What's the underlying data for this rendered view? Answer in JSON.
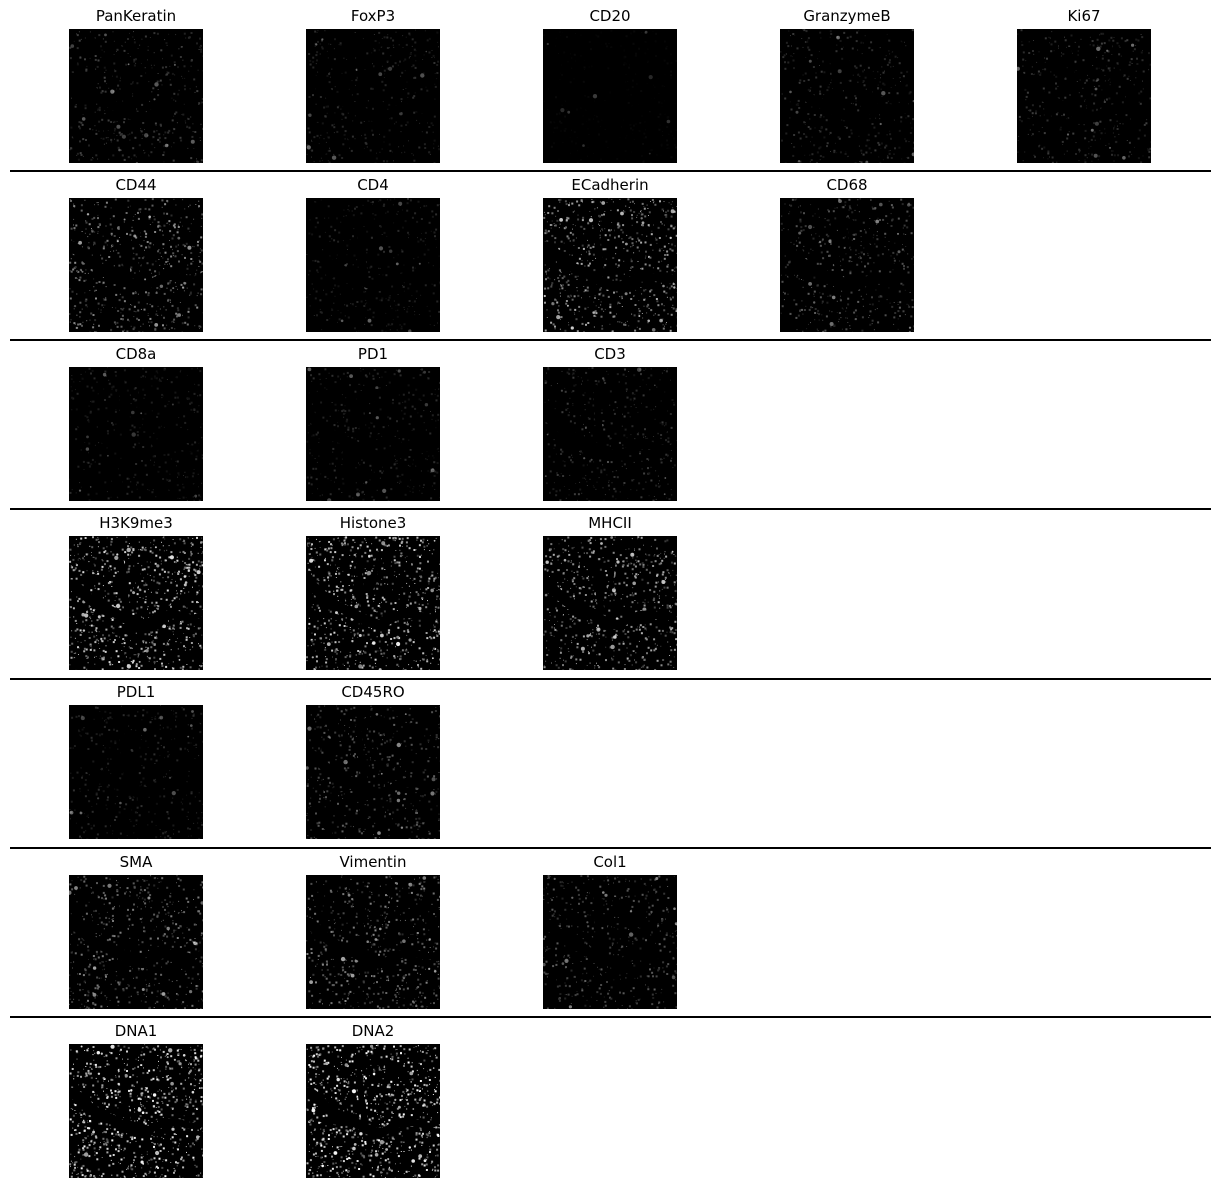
{
  "rows": [
    {
      "panels": [
        {
          "marker": "PanKeratin",
          "intensity": 0.22
        },
        {
          "marker": "FoxP3",
          "intensity": 0.16
        },
        {
          "marker": "CD20",
          "intensity": 0.03
        },
        {
          "marker": "GranzymeB",
          "intensity": 0.18
        },
        {
          "marker": "Ki67",
          "intensity": 0.2
        }
      ]
    },
    {
      "panels": [
        {
          "marker": "CD44",
          "intensity": 0.45
        },
        {
          "marker": "CD4",
          "intensity": 0.14
        },
        {
          "marker": "ECadherin",
          "intensity": 0.55
        },
        {
          "marker": "CD68",
          "intensity": 0.3
        }
      ]
    },
    {
      "panels": [
        {
          "marker": "CD8a",
          "intensity": 0.14
        },
        {
          "marker": "PD1",
          "intensity": 0.15
        },
        {
          "marker": "CD3",
          "intensity": 0.2
        }
      ]
    },
    {
      "panels": [
        {
          "marker": "H3K9me3",
          "intensity": 0.7
        },
        {
          "marker": "Histone3",
          "intensity": 0.68
        },
        {
          "marker": "MHCII",
          "intensity": 0.55
        }
      ]
    },
    {
      "panels": [
        {
          "marker": "PDL1",
          "intensity": 0.16
        },
        {
          "marker": "CD45RO",
          "intensity": 0.3
        }
      ]
    },
    {
      "panels": [
        {
          "marker": "SMA",
          "intensity": 0.4
        },
        {
          "marker": "Vimentin",
          "intensity": 0.42
        },
        {
          "marker": "Col1",
          "intensity": 0.3
        }
      ]
    },
    {
      "panels": [
        {
          "marker": "DNA1",
          "intensity": 0.78
        },
        {
          "marker": "DNA2",
          "intensity": 0.8
        }
      ]
    }
  ]
}
